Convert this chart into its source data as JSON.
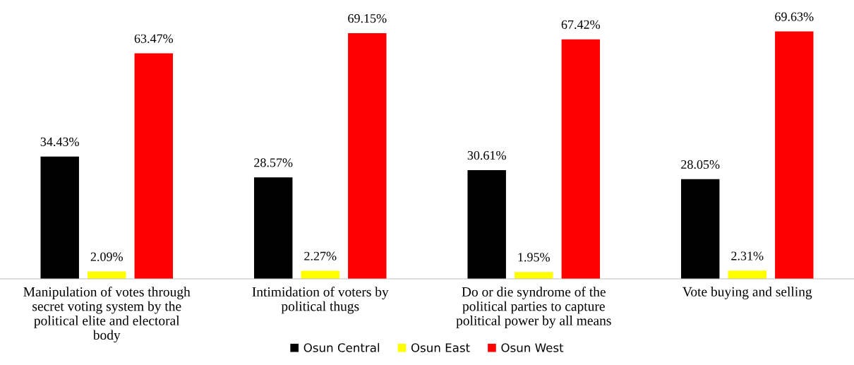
{
  "chart_data": {
    "type": "bar",
    "categories": [
      "Manipulation of votes through secret voting system by the political elite and electoral body",
      "Intimidation of voters by political thugs",
      "Do or die syndrome of the political parties to capture political power by all means",
      "Vote buying and selling"
    ],
    "series": [
      {
        "name": "Osun Central",
        "color": "#000000",
        "values": [
          34.43,
          28.57,
          30.61,
          28.05
        ],
        "value_labels": [
          "34.43%",
          "28.57%",
          "30.61%",
          "28.05%"
        ]
      },
      {
        "name": "Osun East",
        "color": "#ffff00",
        "values": [
          2.09,
          2.27,
          1.95,
          2.31
        ],
        "value_labels": [
          "2.09%",
          "2.27%",
          "1.95%",
          "2.31%"
        ]
      },
      {
        "name": "Osun West",
        "color": "#ff0000",
        "values": [
          63.47,
          69.15,
          67.42,
          69.63
        ],
        "value_labels": [
          "63.47%",
          "69.15%",
          "67.42%",
          "69.63%"
        ]
      }
    ],
    "grid": false,
    "legend": "bottom",
    "tick_labels": "x"
  }
}
